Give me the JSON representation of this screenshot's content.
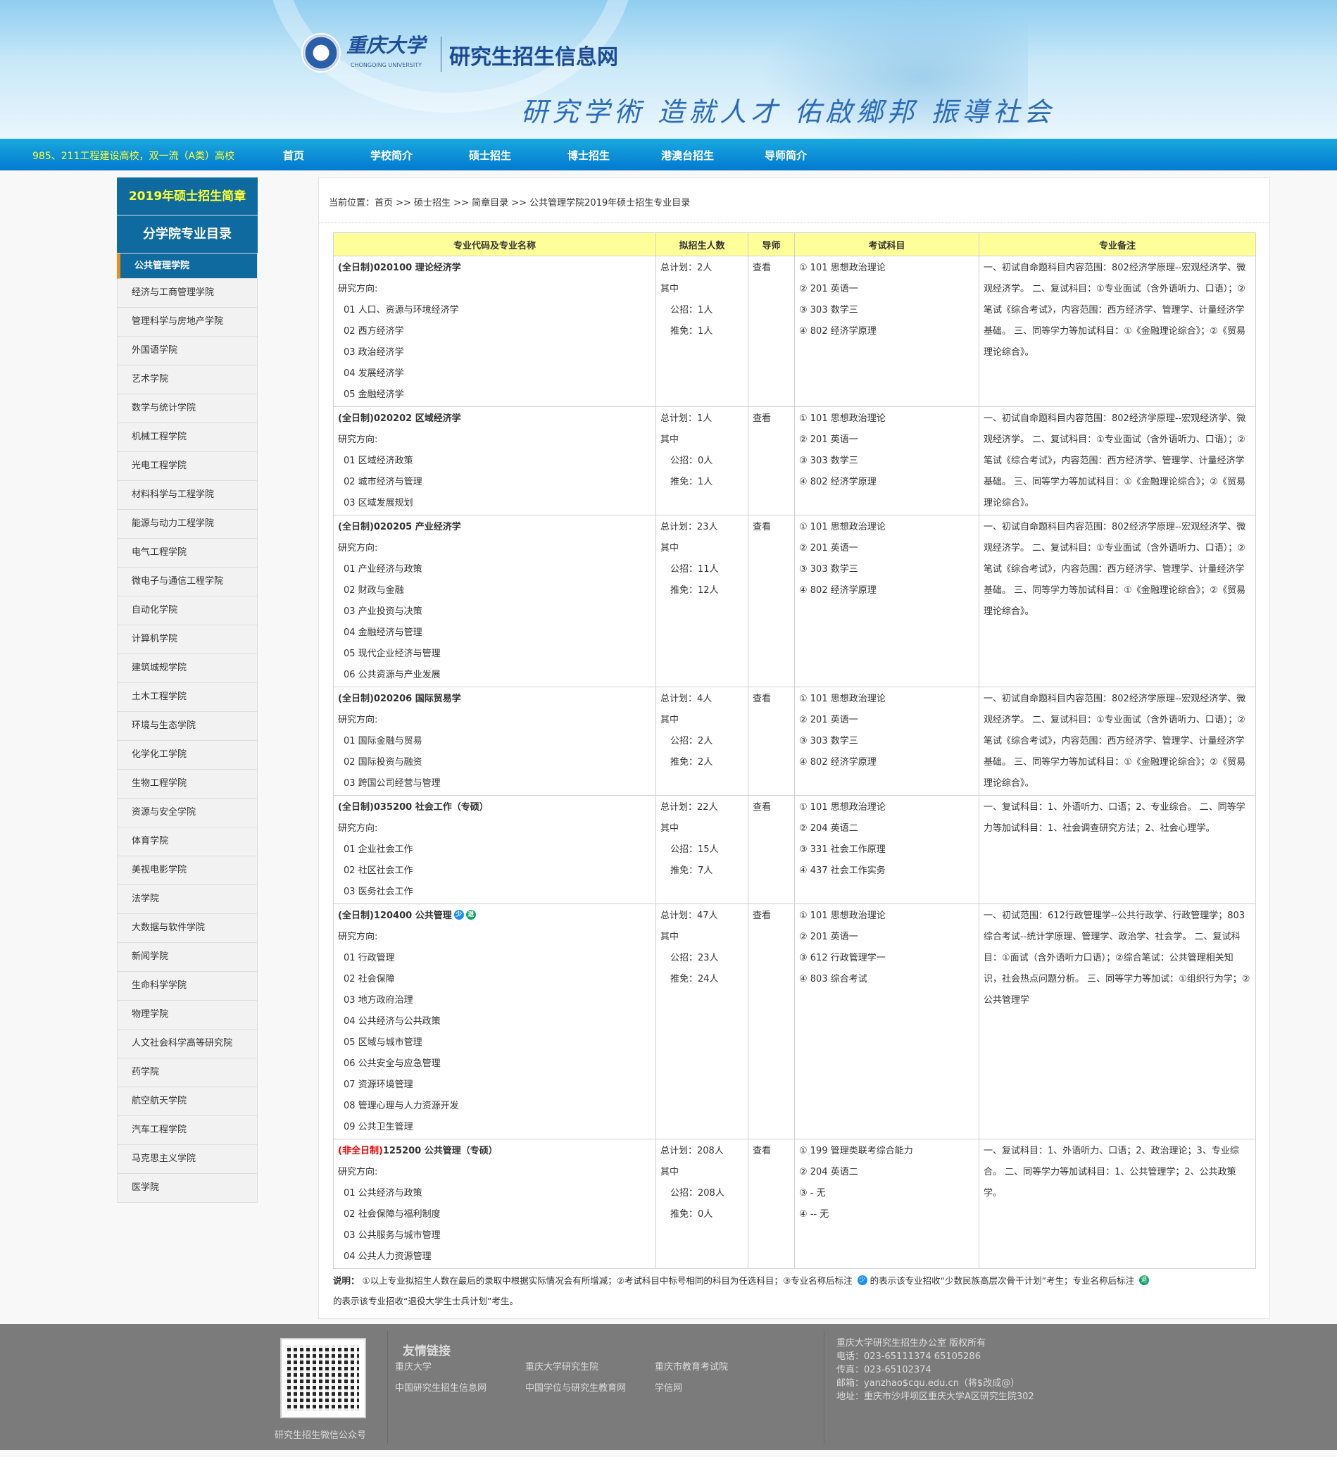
{
  "header": {
    "university_cn": "重庆大学",
    "university_en": "CHONGQING UNIVERSITY",
    "site_title": "研究生招生信息网",
    "slogan": "研究学術 造就人才 佑啟鄉邦 振導社会"
  },
  "nav": {
    "tagline": "985、211工程建设高校，双一流（A类）高校",
    "items": [
      "首页",
      "学校简介",
      "硕士招生",
      "博士招生",
      "港澳台招生",
      "导师简介"
    ]
  },
  "sidebar": {
    "heading1": "2019年硕士招生简章",
    "heading2": "分学院专业目录",
    "active": "公共管理学院",
    "items": [
      "经济与工商管理学院",
      "管理科学与房地产学院",
      "外国语学院",
      "艺术学院",
      "数学与统计学院",
      "机械工程学院",
      "光电工程学院",
      "材料科学与工程学院",
      "能源与动力工程学院",
      "电气工程学院",
      "微电子与通信工程学院",
      "自动化学院",
      "计算机学院",
      "建筑城规学院",
      "土木工程学院",
      "环境与生态学院",
      "化学化工学院",
      "生物工程学院",
      "资源与安全学院",
      "体育学院",
      "美视电影学院",
      "法学院",
      "大数据与软件学院",
      "新闻学院",
      "生命科学学院",
      "物理学院",
      "人文社会科学高等研究院",
      "药学院",
      "航空航天学院",
      "汽车工程学院",
      "马克思主义学院",
      "医学院"
    ]
  },
  "breadcrumb": "当前位置：首页 >> 硕士招生 >> 简章目录  >> 公共管理学院2019年硕士招生专业目录",
  "table": {
    "headers": [
      "专业代码及专业名称",
      "拟招生人数",
      "导师",
      "考试科目",
      "专业备注"
    ],
    "directions_label": "研究方向:",
    "of_which_label": "其中",
    "advisor_link": "查看",
    "programs": [
      {
        "mode": "(全日制)",
        "code_name": "020100 理论经济学",
        "badges": [],
        "directions": [
          "01 人口、资源与环境经济学",
          "02 西方经济学",
          "03 政治经济学",
          "04 发展经济学",
          "05 金融经济学"
        ],
        "total": "总计划：2人",
        "public": "公招：1人",
        "exempt": "推免：1人",
        "exams": [
          "① 101 思想政治理论",
          "② 201 英语一",
          "③ 303 数学三",
          "④ 802 经济学原理"
        ],
        "remark": "一、初试自命题科目内容范围：802经济学原理--宏观经济学、微观经济学。 二、复试科目：①专业面试（含外语听力、口语）；②笔试《综合考试》，内容范围：西方经济学、管理学、计量经济学基础。 三、同等学力等加试科目：①《金融理论综合》；②《贸易理论综合》。"
      },
      {
        "mode": "(全日制)",
        "code_name": "020202 区域经济学",
        "badges": [],
        "directions": [
          "01 区域经济政策",
          "02 城市经济与管理",
          "03 区域发展规划"
        ],
        "total": "总计划：1人",
        "public": "公招：0人",
        "exempt": "推免：1人",
        "exams": [
          "① 101 思想政治理论",
          "② 201 英语一",
          "③ 303 数学三",
          "④ 802 经济学原理"
        ],
        "remark": "一、初试自命题科目内容范围：802经济学原理--宏观经济学、微观经济学。 二、复试科目：①专业面试（含外语听力、口语）；②笔试《综合考试》，内容范围：西方经济学、管理学、计量经济学基础。 三、同等学力等加试科目：①《金融理论综合》；②《贸易理论综合》。"
      },
      {
        "mode": "(全日制)",
        "code_name": "020205 产业经济学",
        "badges": [],
        "directions": [
          "01 产业经济与政策",
          "02 财政与金融",
          "03 产业投资与决策",
          "04 金融经济与管理",
          "05 现代企业经济与管理",
          "06 公共资源与产业发展"
        ],
        "total": "总计划：23人",
        "public": "公招：11人",
        "exempt": "推免：12人",
        "exams": [
          "① 101 思想政治理论",
          "② 201 英语一",
          "③ 303 数学三",
          "④ 802 经济学原理"
        ],
        "remark": "一、初试自命题科目内容范围：802经济学原理--宏观经济学、微观经济学。 二、复试科目：①专业面试（含外语听力、口语）；②笔试《综合考试》，内容范围：西方经济学、管理学、计量经济学基础。 三、同等学力等加试科目：①《金融理论综合》；②《贸易理论综合》。"
      },
      {
        "mode": "(全日制)",
        "code_name": "020206 国际贸易学",
        "badges": [],
        "directions": [
          "01 国际金融与贸易",
          "02 国际投资与融资",
          "03 跨国公司经营与管理"
        ],
        "total": "总计划：4人",
        "public": "公招：2人",
        "exempt": "推免：2人",
        "exams": [
          "① 101 思想政治理论",
          "② 201 英语一",
          "③ 303 数学三",
          "④ 802 经济学原理"
        ],
        "remark": "一、初试自命题科目内容范围：802经济学原理--宏观经济学、微观经济学。 二、复试科目：①专业面试（含外语听力、口语）；②笔试《综合考试》，内容范围：西方经济学、管理学、计量经济学基础。 三、同等学力等加试科目：①《金融理论综合》；②《贸易理论综合》。"
      },
      {
        "mode": "(全日制)",
        "code_name": "035200 社会工作（专硕）",
        "badges": [],
        "directions": [
          "01 企业社会工作",
          "02 社区社会工作",
          "03 医务社会工作"
        ],
        "total": "总计划：22人",
        "public": "公招：15人",
        "exempt": "推免：7人",
        "exams": [
          "① 101 思想政治理论",
          "② 204 英语二",
          "③ 331 社会工作原理",
          "④ 437 社会工作实务"
        ],
        "remark": "一、复试科目：1、外语听力、口语；2、专业综合。 二、同等学力等加试科目：1、社会调查研究方法；2、社会心理学。"
      },
      {
        "mode": "(全日制)",
        "code_name": "120400 公共管理",
        "badges": [
          "少",
          "退"
        ],
        "directions": [
          "01 行政管理",
          "02 社会保障",
          "03 地方政府治理",
          "04 公共经济与公共政策",
          "05 区域与城市管理",
          "06 公共安全与应急管理",
          "07 资源环境管理",
          "08 管理心理与人力资源开发",
          "09 公共卫生管理"
        ],
        "total": "总计划：47人",
        "public": "公招：23人",
        "exempt": "推免：24人",
        "exams": [
          "① 101 思想政治理论",
          "② 201 英语一",
          "③ 612 行政管理学一",
          "④ 803 综合考试"
        ],
        "remark": "一、初试范围：612行政管理学--公共行政学、行政管理学；803综合考试--统计学原理、管理学、政治学、社会学。 二、复试科目：①面试（含外语听力口语）；②综合笔试：公共管理相关知识，社会热点问题分析。 三、同等学力等加试：①组织行为学；②公共管理学"
      },
      {
        "mode": "(非全日制)",
        "code_name": "125200 公共管理（专硕）",
        "badges": [],
        "mode_red": true,
        "directions": [
          "01 公共经济与政策",
          "02 社会保障与福利制度",
          "03 公共服务与城市管理",
          "04 公共人力资源管理"
        ],
        "total": "总计划：208人",
        "public": "公招：208人",
        "exempt": "推免：0人",
        "exams": [
          "① 199 管理类联考综合能力",
          "② 204 英语二",
          "③ - 无",
          "④ -- 无"
        ],
        "remark": "一、复试科目：1、外语听力、口语；2、政治理论；3、专业综合。 二、同等学力等加试科目：1、公共管理学；2、公共政策学。"
      }
    ]
  },
  "note": {
    "label": "说明：",
    "part1": "①以上专业拟招生人数在最后的录取中根据实际情况会有所增减；②考试科目中标号相同的科目为任选科目；③专业名称后标注",
    "badge1": "少",
    "part2": "的表示该专业招收“少数民族高层次骨干计划”考生；专业名称后标注",
    "badge2": "退",
    "part3": "的表示该专业招收“退役大学生士兵计划”考生。"
  },
  "footer": {
    "qr_caption": "研究生招生微信公众号",
    "links_title": "友情链接",
    "links": [
      "重庆大学",
      "重庆大学研究生院",
      "重庆市教育考试院",
      "中国研究生招生信息网",
      "中国学位与研究生教育网",
      "学信网"
    ],
    "contact": [
      "重庆大学研究生招生办公室  版权所有",
      "电话：023-65111374 65105286",
      "传真：023-65102374",
      "邮箱：yanzhao$cqu.edu.cn（将$改成@）",
      "地址：重庆市沙坪坝区重庆大学A区研究生院302"
    ]
  },
  "colors": {
    "nav": "#0a8ad8",
    "sidebar": "#0f6aa0",
    "accent_yellow": "#ffff33",
    "table_header": "#ffff99",
    "footer": "#7b7b7b",
    "badge_minority": "#1a8ff0",
    "badge_veteran": "#16a36a"
  }
}
